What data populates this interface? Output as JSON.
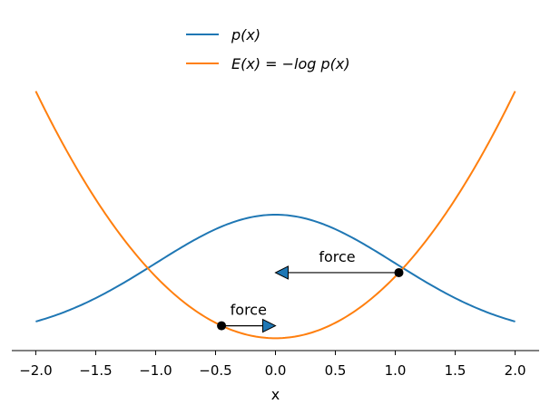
{
  "chart_data": {
    "type": "line",
    "xlabel": "x",
    "xlim": [
      -2.2,
      2.2
    ],
    "ylim": [
      -0.1,
      2.65
    ],
    "x_ticks": [
      "−2.0",
      "−1.5",
      "−1.0",
      "−0.5",
      "0.0",
      "0.5",
      "1.0",
      "1.5",
      "2.0"
    ],
    "x_tick_values": [
      -2.0,
      -1.5,
      -1.0,
      -0.5,
      0.0,
      0.5,
      1.0,
      1.5,
      2.0
    ],
    "y_axis_visible": false,
    "grid": false,
    "legend_position": "top-center",
    "series": [
      {
        "name": "p(x)",
        "color": "#1f77b4",
        "formula": "exp(-x^2/2)",
        "x_range": [
          -2.0,
          2.0
        ]
      },
      {
        "name": "E(x) = −log p(x)",
        "color": "#ff7f0e",
        "formula": "x^2/2",
        "x_range": [
          -2.0,
          2.0
        ]
      }
    ],
    "annotations": [
      {
        "text": "force",
        "point": [
          -0.45,
          0.101
        ],
        "arrow_to": [
          0.0,
          0.101
        ],
        "direction": "right"
      },
      {
        "text": "force",
        "point": [
          1.03,
          0.531
        ],
        "arrow_to": [
          0.0,
          0.531
        ],
        "direction": "left"
      }
    ],
    "colors": {
      "arrow_fill": "#1f77b4",
      "point": "#000000",
      "axis": "#000000"
    }
  }
}
